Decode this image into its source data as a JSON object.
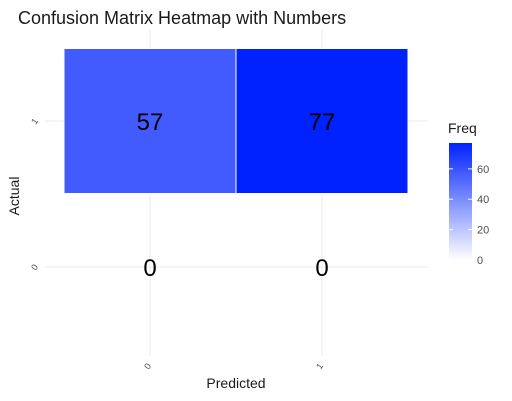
{
  "chart_data": {
    "type": "heatmap",
    "title": "Confusion Matrix Heatmap with Numbers",
    "xlabel": "Predicted",
    "ylabel": "Actual",
    "x_categories": [
      "0",
      "1"
    ],
    "y_categories": [
      "0",
      "1"
    ],
    "cells": [
      {
        "actual": "1",
        "predicted": "0",
        "value": 57,
        "label": "57",
        "filled": true
      },
      {
        "actual": "1",
        "predicted": "1",
        "value": 77,
        "label": "77",
        "filled": true
      },
      {
        "actual": "0",
        "predicted": "0",
        "value": 0,
        "label": "0",
        "filled": false
      },
      {
        "actual": "0",
        "predicted": "1",
        "value": 0,
        "label": "0",
        "filled": false
      }
    ],
    "legend": {
      "title": "Freq",
      "ticks": [
        0,
        20,
        40,
        60
      ],
      "tick_labels": [
        "0",
        "20",
        "40",
        "60"
      ],
      "range": [
        0,
        77
      ],
      "low_color": "#ffffff",
      "high_color": "#0022ff"
    },
    "grid": true,
    "legend_position": "right"
  }
}
